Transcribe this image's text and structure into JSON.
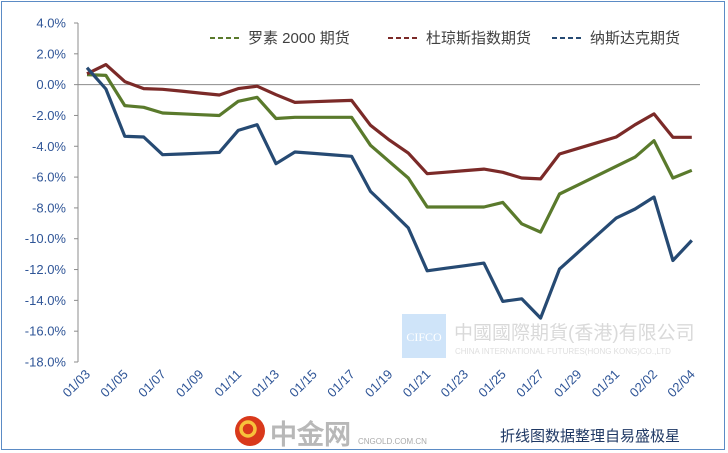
{
  "chart_data": {
    "type": "line",
    "title": "",
    "xlabel": "",
    "ylabel": "",
    "ylim": [
      -18,
      4
    ],
    "ytick_step": 2,
    "y_format": "percent-1dp",
    "grid": false,
    "legend_position": "top-right",
    "x": [
      "01/03",
      "01/04",
      "01/05",
      "01/06",
      "01/07",
      "01/08",
      "01/09",
      "01/10",
      "01/11",
      "01/12",
      "01/13",
      "01/14",
      "01/15",
      "01/16",
      "01/17",
      "01/18",
      "01/19",
      "01/20",
      "01/21",
      "01/22",
      "01/23",
      "01/24",
      "01/25",
      "01/26",
      "01/27",
      "01/28",
      "01/29",
      "01/30",
      "01/31",
      "02/01",
      "02/02",
      "02/03",
      "02/04"
    ],
    "tick_labels": [
      "01/03",
      "01/05",
      "01/07",
      "01/09",
      "01/11",
      "01/13",
      "01/15",
      "01/17",
      "01/19",
      "01/21",
      "01/23",
      "01/25",
      "01/27",
      "01/29",
      "01/31",
      "02/02",
      "02/04"
    ],
    "series": [
      {
        "name": "罗素 2000 期货",
        "color": "#5a7a2c",
        "values": [
          0.65,
          0.6,
          -1.36,
          -1.47,
          -1.84,
          -1.89,
          -1.95,
          -2.0,
          -1.08,
          -0.82,
          -2.2,
          -2.12,
          -2.12,
          -2.12,
          -2.12,
          -3.94,
          -5.0,
          -6.06,
          -7.94,
          -7.94,
          -7.94,
          -7.94,
          -7.64,
          -9.03,
          -9.57,
          -7.1,
          -6.5,
          -5.9,
          -5.3,
          -4.7,
          -3.64,
          -6.06,
          -5.56
        ]
      },
      {
        "name": "杜琼斯指数期货",
        "color": "#7b2a28",
        "values": [
          0.7,
          1.3,
          0.2,
          -0.26,
          -0.3,
          -0.42,
          -0.55,
          -0.67,
          -0.26,
          -0.1,
          -0.65,
          -1.15,
          -1.11,
          -1.06,
          -1.02,
          -2.64,
          -3.6,
          -4.44,
          -5.78,
          -5.68,
          -5.58,
          -5.48,
          -5.69,
          -6.06,
          -6.12,
          -4.5,
          -4.13,
          -3.77,
          -3.4,
          -2.6,
          -1.9,
          -3.42,
          -3.42
        ]
      },
      {
        "name": "纳斯达克期货",
        "color": "#264a73",
        "values": [
          1.1,
          -0.28,
          -3.35,
          -3.4,
          -4.55,
          -4.5,
          -4.45,
          -4.4,
          -2.97,
          -2.6,
          -5.13,
          -4.37,
          -4.46,
          -4.56,
          -4.65,
          -6.93,
          -8.1,
          -9.3,
          -12.08,
          -11.91,
          -11.75,
          -11.58,
          -14.07,
          -13.9,
          -15.15,
          -11.97,
          -10.87,
          -9.76,
          -8.66,
          -8.07,
          -7.29,
          -11.41,
          -10.11
        ]
      }
    ]
  },
  "watermarks": {
    "cifco_logo": "CIFCO",
    "cifco_name": "中國國際期貨(香港)有限公司",
    "cifco_name_en": "CHINA INTERNATIONAL FUTURES(HONG KONG)CO.,LTD",
    "cngold_logo": "中金网",
    "cngold_url": "CNGOLD.COM.CN"
  },
  "footer_note": "折线图数据整理自易盛极星"
}
